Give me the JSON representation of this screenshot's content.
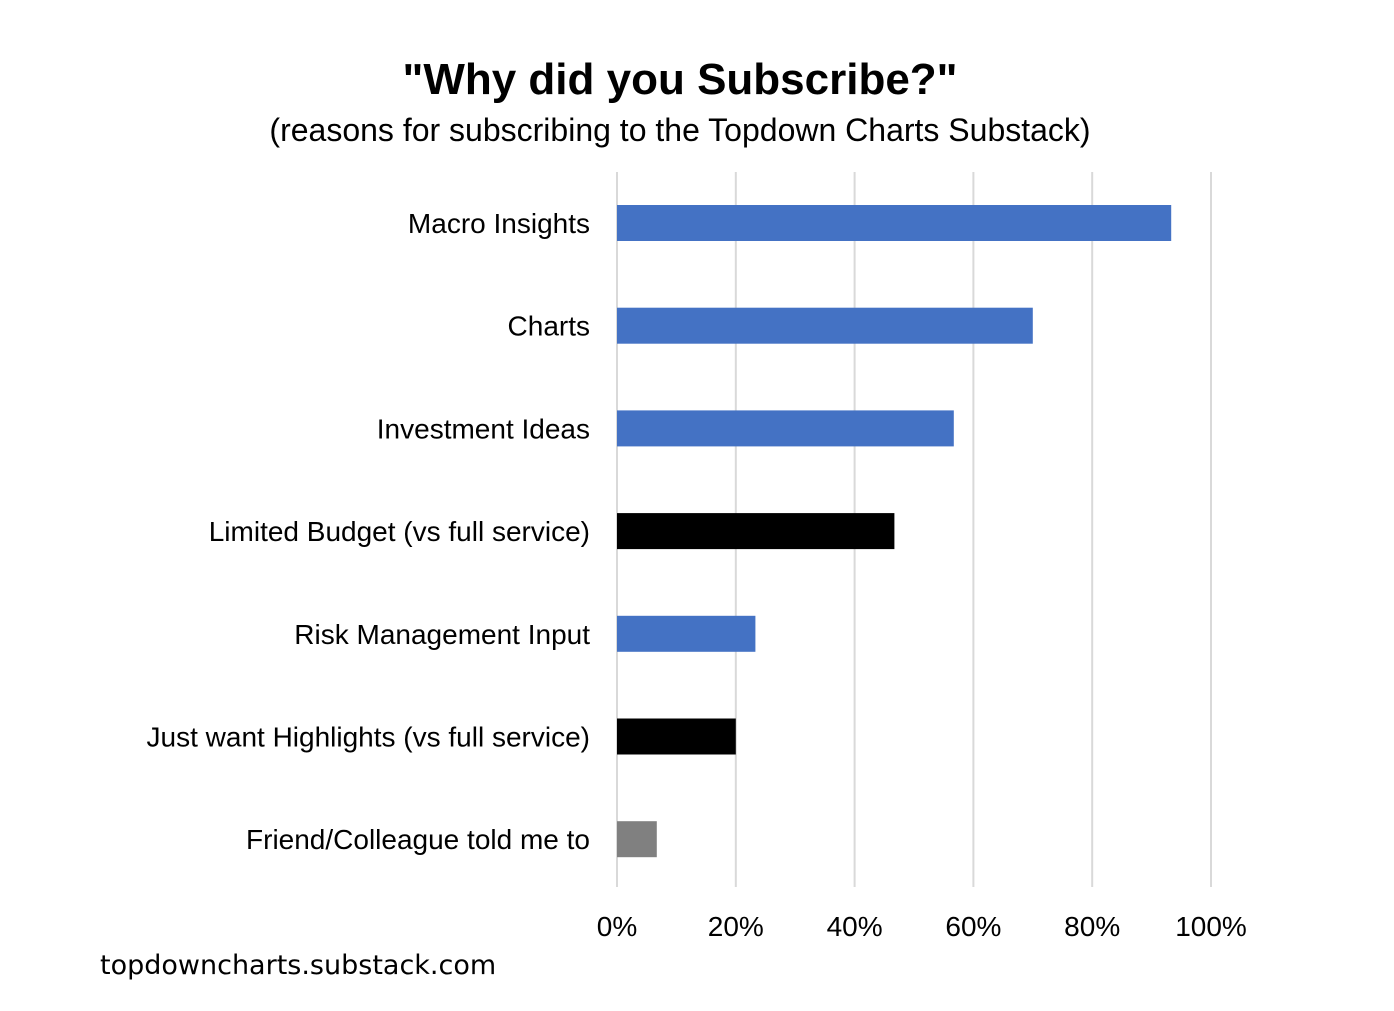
{
  "chart_data": {
    "type": "bar",
    "orientation": "horizontal",
    "title": "\"Why did you Subscribe?\"",
    "subtitle": "(reasons for subscribing to the Topdown Charts Substack)",
    "categories": [
      "Macro Insights",
      "Charts",
      "Investment Ideas",
      "Limited Budget (vs full service)",
      "Risk Management Input",
      "Just want Highlights (vs full service)",
      "Friend/Colleague told me to"
    ],
    "values": [
      93.3,
      70.0,
      56.7,
      46.7,
      23.3,
      20.0,
      6.7
    ],
    "bar_colors": [
      "#4472C4",
      "#4472C4",
      "#4472C4",
      "#000000",
      "#4472C4",
      "#000000",
      "#808080"
    ],
    "xlim": [
      0,
      100
    ],
    "xticks": [
      0,
      20,
      40,
      60,
      80,
      100
    ],
    "xtick_labels": [
      "0%",
      "20%",
      "40%",
      "60%",
      "80%",
      "100%"
    ],
    "grid": true,
    "gridline_color": "#D9D9D9",
    "xlabel": "",
    "ylabel": ""
  },
  "watermark": "topdowncharts.substack.com"
}
